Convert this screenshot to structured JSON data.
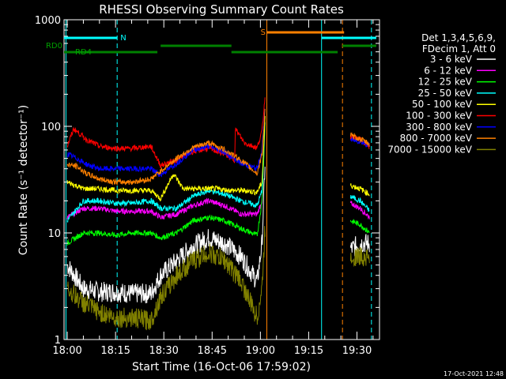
{
  "chart_data": {
    "type": "line",
    "title": "RHESSI Observing Summary Count Rates",
    "xlabel": "Start Time (16-Oct-06 17:59:02)",
    "ylabel": "Count Rate (s⁻¹ detector⁻¹)",
    "x_ticks": [
      "18:00",
      "18:15",
      "18:30",
      "18:45",
      "19:00",
      "19:15",
      "19:30"
    ],
    "y_ticks": [
      "1",
      "10",
      "100",
      "1000"
    ],
    "y_scale": "log",
    "ylim": [
      1,
      1000
    ],
    "xlim_minutes": [
      -1,
      97
    ],
    "legend_header": [
      "Det 1,3,4,5,6,9,",
      "FDecim 1, Att 0"
    ],
    "stamp": "17-Oct-2021 12:48",
    "flags": [
      {
        "label": "N",
        "color": "#00ffff",
        "segments": [
          [
            -1,
            15.5
          ],
          [
            79,
            96
          ]
        ]
      },
      {
        "label": "S",
        "color": "#ff8000",
        "segments": [
          [
            62,
            86
          ]
        ]
      },
      {
        "label": "RD0",
        "color": "#008000",
        "segments": [
          [
            29,
            51
          ],
          [
            85.5,
            96
          ]
        ]
      },
      {
        "label": "RD4",
        "color": "#008000",
        "segments": [
          [
            -1,
            28
          ],
          [
            51,
            84
          ]
        ]
      }
    ],
    "vlines": [
      {
        "x": -0.4,
        "color": "#00ffff",
        "style": "solid"
      },
      {
        "x": 15.5,
        "color": "#00ffff",
        "style": "dashed"
      },
      {
        "x": 62,
        "color": "#ff8000",
        "style": "solid"
      },
      {
        "x": 79,
        "color": "#00ffff",
        "style": "solid"
      },
      {
        "x": 85.5,
        "color": "#ff8000",
        "style": "dashed"
      },
      {
        "x": 94.5,
        "color": "#00ffff",
        "style": "dashed"
      }
    ],
    "series": [
      {
        "name": "3 - 6 keV",
        "color": "#ffffff",
        "points": [
          [
            0,
            5
          ],
          [
            5,
            3
          ],
          [
            10,
            2.8
          ],
          [
            15,
            2.8
          ],
          [
            20,
            2.7
          ],
          [
            26,
            2.7
          ],
          [
            29,
            4
          ],
          [
            34,
            5.5
          ],
          [
            39,
            7.5
          ],
          [
            44,
            9
          ],
          [
            49,
            8
          ],
          [
            54,
            6
          ],
          [
            59,
            3.5
          ],
          [
            60.5,
            8
          ],
          [
            61.5,
            50
          ]
        ],
        "points2": [
          [
            88,
            7
          ],
          [
            91,
            8
          ],
          [
            94,
            8
          ]
        ]
      },
      {
        "name": "6 - 12 keV",
        "color": "#ff00ff",
        "points": [
          [
            0,
            14
          ],
          [
            5,
            17
          ],
          [
            10,
            17
          ],
          [
            15,
            16
          ],
          [
            20,
            16
          ],
          [
            26,
            16
          ],
          [
            29,
            14
          ],
          [
            34,
            15
          ],
          [
            39,
            18
          ],
          [
            44,
            20
          ],
          [
            49,
            18
          ],
          [
            54,
            15
          ],
          [
            59,
            15
          ],
          [
            60.5,
            20
          ],
          [
            61.5,
            120
          ]
        ],
        "points2": [
          [
            88,
            19
          ],
          [
            91,
            17
          ],
          [
            94,
            14
          ]
        ]
      },
      {
        "name": "12 - 25 keV",
        "color": "#00ff00",
        "points": [
          [
            0,
            8
          ],
          [
            5,
            10
          ],
          [
            10,
            10
          ],
          [
            15,
            9.5
          ],
          [
            20,
            10
          ],
          [
            26,
            10
          ],
          [
            29,
            9
          ],
          [
            34,
            10
          ],
          [
            39,
            13
          ],
          [
            44,
            14
          ],
          [
            49,
            13
          ],
          [
            54,
            11
          ],
          [
            59,
            9.5
          ],
          [
            60.5,
            20
          ],
          [
            61.5,
            120
          ]
        ],
        "points2": [
          [
            88,
            13
          ],
          [
            91,
            12
          ],
          [
            94,
            10
          ]
        ]
      },
      {
        "name": "25 - 50 keV",
        "color": "#00ffff",
        "points": [
          [
            0,
            13
          ],
          [
            5,
            20
          ],
          [
            10,
            20
          ],
          [
            15,
            19
          ],
          [
            20,
            19
          ],
          [
            26,
            20
          ],
          [
            29,
            17
          ],
          [
            34,
            17
          ],
          [
            39,
            22
          ],
          [
            44,
            25
          ],
          [
            49,
            23
          ],
          [
            54,
            20
          ],
          [
            59,
            18
          ],
          [
            60.5,
            25
          ],
          [
            61.5,
            130
          ]
        ],
        "points2": [
          [
            88,
            22
          ],
          [
            91,
            20
          ],
          [
            94,
            16
          ]
        ]
      },
      {
        "name": "50 - 100 keV",
        "color": "#ffff00",
        "points": [
          [
            0,
            30
          ],
          [
            5,
            26
          ],
          [
            10,
            26
          ],
          [
            15,
            25
          ],
          [
            20,
            25
          ],
          [
            26,
            25
          ],
          [
            29,
            21
          ],
          [
            33,
            36
          ],
          [
            36,
            26
          ],
          [
            41,
            26
          ],
          [
            46,
            26
          ],
          [
            51,
            25
          ],
          [
            55,
            25
          ],
          [
            59,
            24
          ],
          [
            60.5,
            30
          ],
          [
            61.5,
            130
          ]
        ],
        "points2": [
          [
            88,
            28
          ],
          [
            91,
            26
          ],
          [
            94,
            23
          ]
        ]
      },
      {
        "name": "100 - 300 keV",
        "color": "#ff0000",
        "points": [
          [
            0,
            65
          ],
          [
            2,
            95
          ],
          [
            6,
            75
          ],
          [
            10,
            65
          ],
          [
            15,
            62
          ],
          [
            20,
            62
          ],
          [
            26,
            65
          ],
          [
            29,
            43
          ],
          [
            34,
            48
          ],
          [
            39,
            58
          ],
          [
            44,
            62
          ],
          [
            49,
            55
          ],
          [
            52,
            48
          ],
          [
            52.2,
            95
          ],
          [
            55,
            70
          ],
          [
            59,
            63
          ],
          [
            60.5,
            90
          ],
          [
            61.5,
            200
          ]
        ],
        "points2": [
          [
            88,
            80
          ],
          [
            91,
            75
          ],
          [
            94,
            63
          ]
        ]
      },
      {
        "name": "300 - 800 keV",
        "color": "#0000ff",
        "points": [
          [
            0,
            55
          ],
          [
            3,
            50
          ],
          [
            6,
            44
          ],
          [
            10,
            40
          ],
          [
            15,
            40
          ],
          [
            20,
            40
          ],
          [
            26,
            40
          ],
          [
            29,
            35
          ],
          [
            34,
            45
          ],
          [
            39,
            60
          ],
          [
            44,
            65
          ],
          [
            49,
            57
          ],
          [
            54,
            45
          ],
          [
            59,
            40
          ],
          [
            60.5,
            60
          ],
          [
            61.5,
            160
          ]
        ],
        "points2": [
          [
            88,
            75
          ],
          [
            91,
            72
          ],
          [
            94,
            66
          ]
        ]
      },
      {
        "name": "800 - 7000 keV",
        "color": "#ff8000",
        "points": [
          [
            0,
            44
          ],
          [
            3,
            42
          ],
          [
            6,
            36
          ],
          [
            10,
            32
          ],
          [
            15,
            30
          ],
          [
            20,
            30
          ],
          [
            26,
            32
          ],
          [
            29,
            38
          ],
          [
            34,
            50
          ],
          [
            39,
            63
          ],
          [
            44,
            70
          ],
          [
            49,
            60
          ],
          [
            54,
            48
          ],
          [
            59,
            36
          ],
          [
            60.5,
            55
          ],
          [
            61.5,
            150
          ]
        ],
        "points2": [
          [
            88,
            82
          ],
          [
            91,
            76
          ],
          [
            94,
            68
          ]
        ]
      },
      {
        "name": "7000 - 15000 keV",
        "color": "#808000",
        "points": [
          [
            0,
            3
          ],
          [
            5,
            2.2
          ],
          [
            10,
            1.8
          ],
          [
            15,
            1.6
          ],
          [
            20,
            1.6
          ],
          [
            26,
            1.5
          ],
          [
            29,
            2.5
          ],
          [
            34,
            4
          ],
          [
            39,
            5.5
          ],
          [
            44,
            6.5
          ],
          [
            49,
            5.5
          ],
          [
            54,
            3.5
          ],
          [
            59,
            1.6
          ],
          [
            60.5,
            3
          ],
          [
            61.5,
            12
          ]
        ],
        "points2": [
          [
            88,
            6
          ],
          [
            91,
            6
          ],
          [
            94,
            6
          ]
        ]
      }
    ]
  }
}
